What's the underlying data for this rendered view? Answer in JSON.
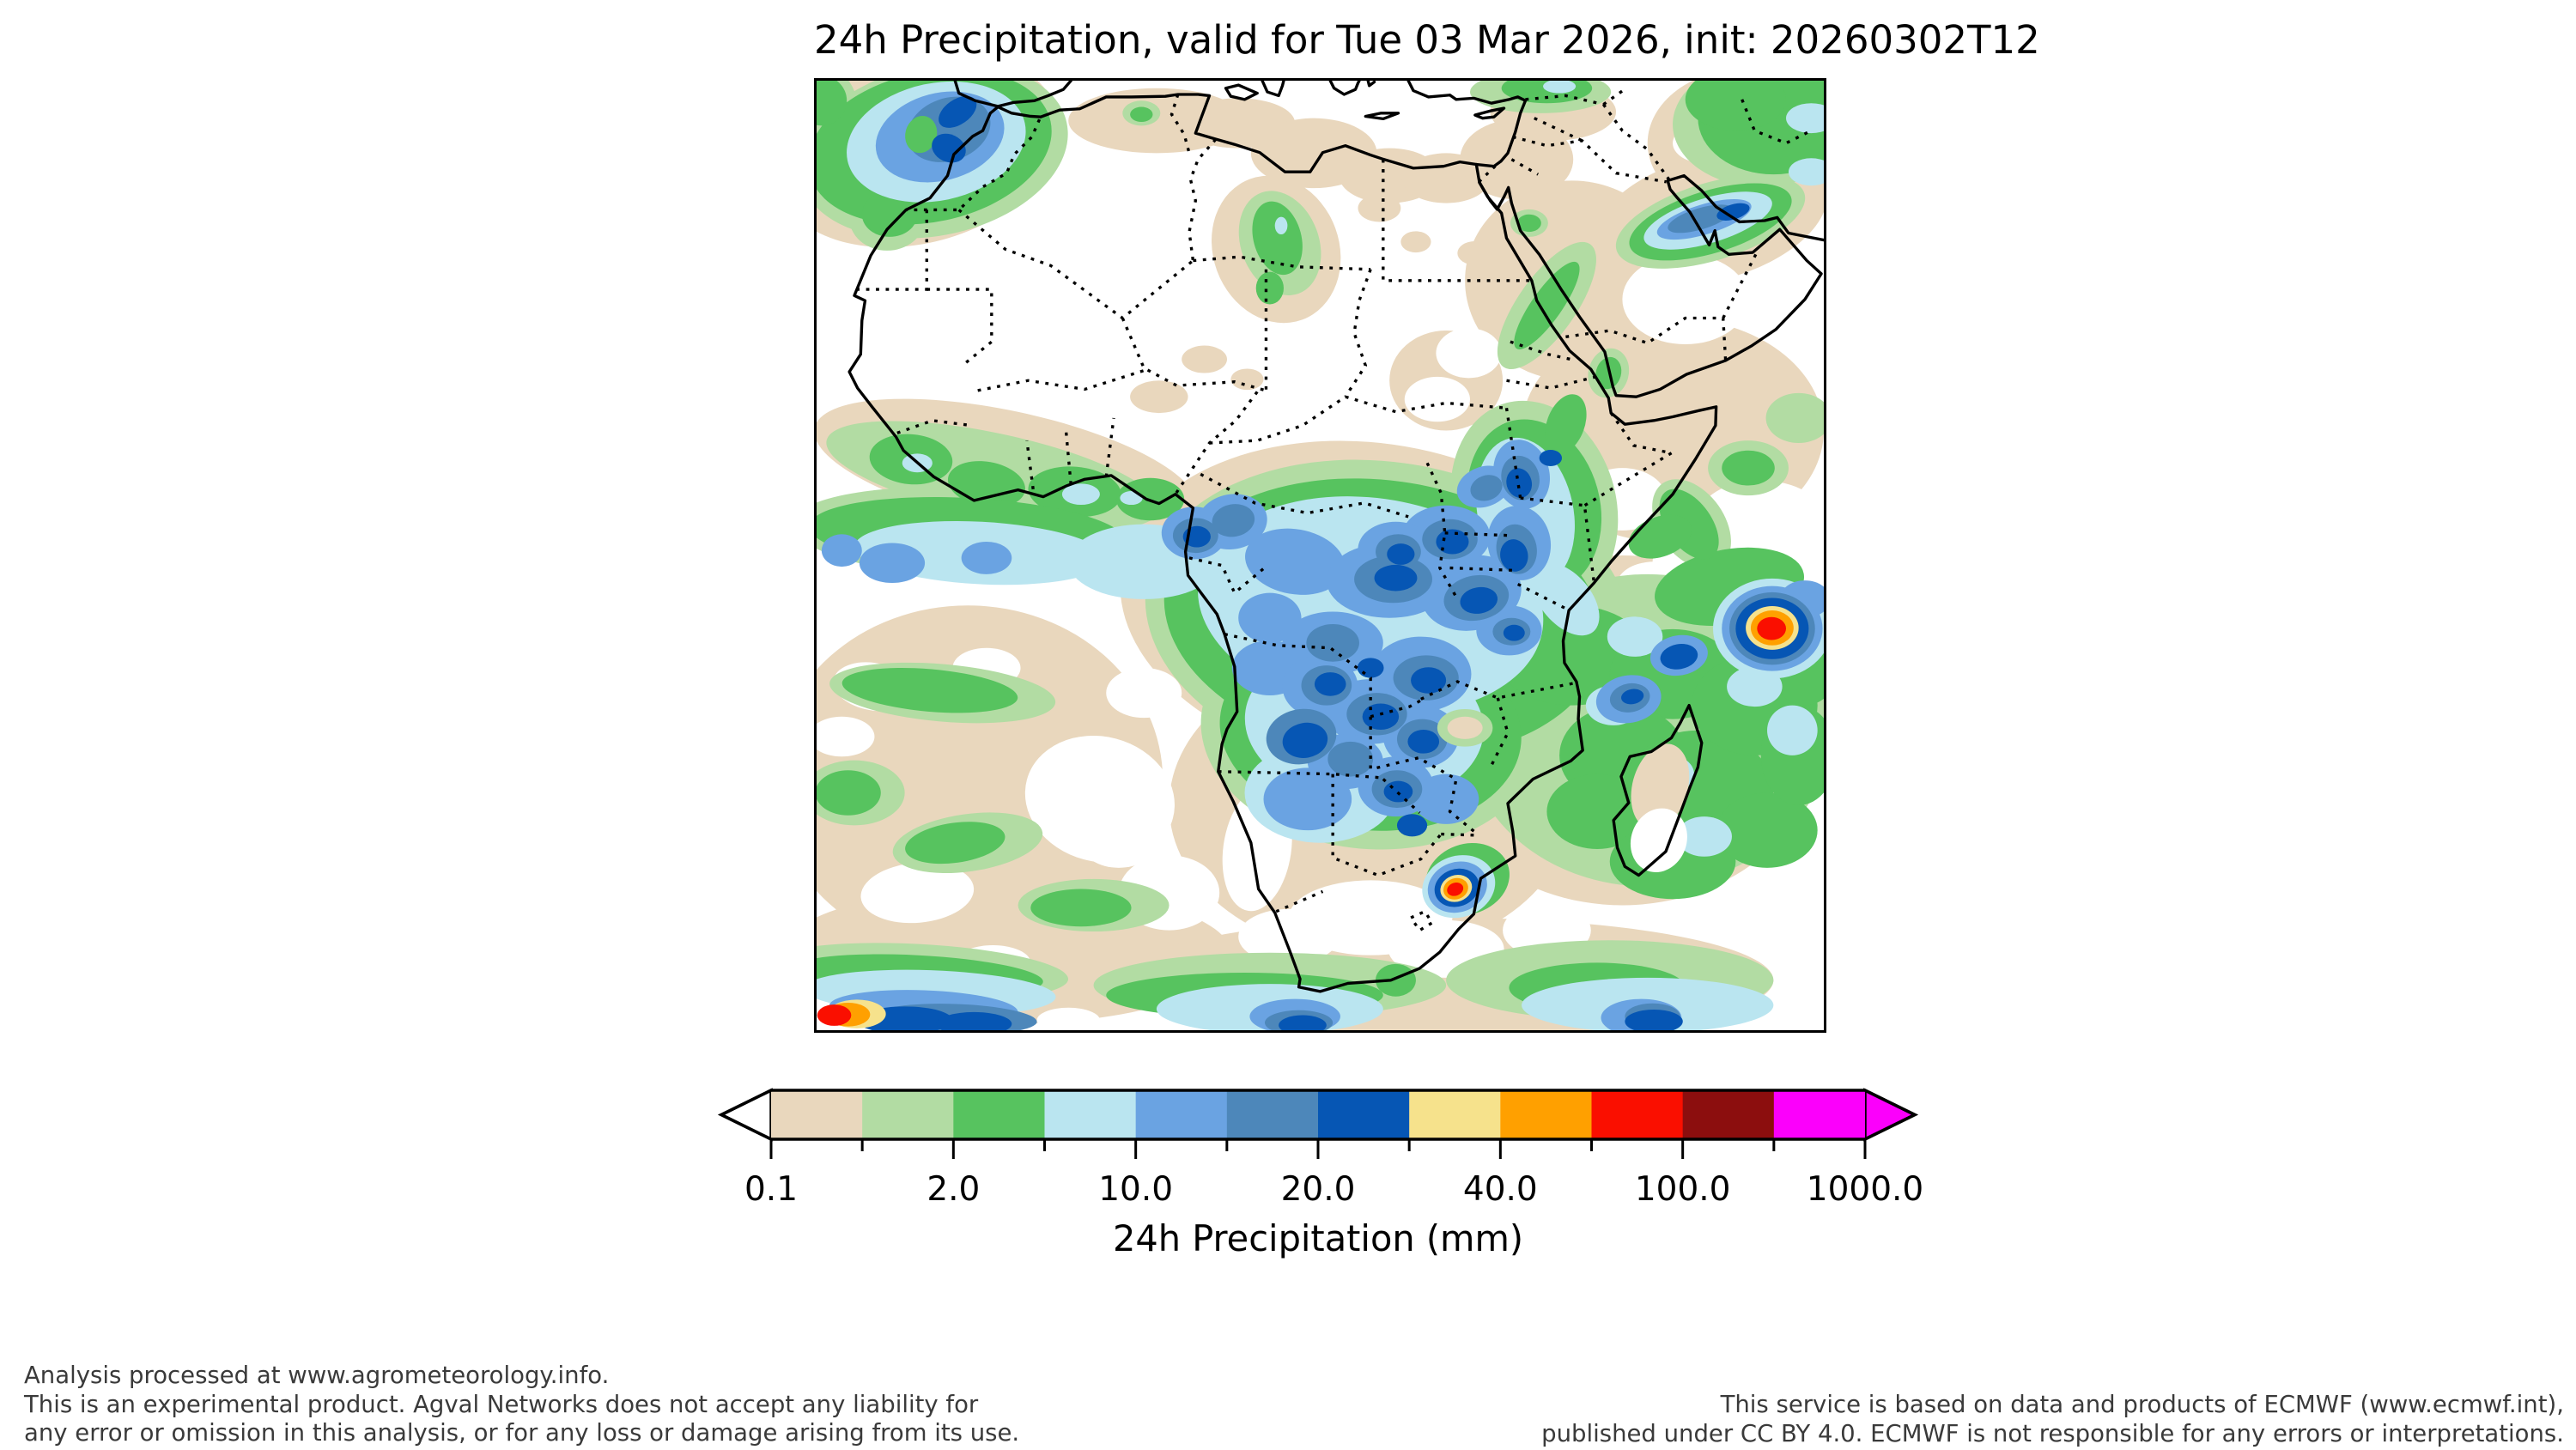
{
  "title": "24h Precipitation, valid for Tue 03 Mar 2026, init: 20260302T12",
  "colorbar": {
    "axis_label": "24h Precipitation (mm)",
    "tick_labels": [
      "0.1",
      "2.0",
      "10.0",
      "20.0",
      "40.0",
      "100.0",
      "1000.0"
    ],
    "segment_colors": [
      "#e9d7bd",
      "#b2dca3",
      "#57c35f",
      "#bae5f0",
      "#6aa3e2",
      "#4d87ba",
      "#0656b4",
      "#f6e28c",
      "#ffa000",
      "#fa0f00",
      "#8c0e0e",
      "#fb00fb"
    ],
    "under_arrow_color": "#ffffff",
    "over_arrow_color": "#fb00fb"
  },
  "footer_left": [
    "Analysis processed at www.agrometeorology.info.",
    "This is an experimental product. Agval Networks does not accept any liability for",
    "any error or omission in this analysis, or for any loss or damage arising from its use."
  ],
  "footer_right": [
    "This service is based on data and products of ECMWF (www.ecmwf.int),",
    "published under CC BY 4.0. ECMWF is not responsible for any errors or interpretations."
  ],
  "text_color": "#000000",
  "footer_text_color": "#3a3a3a"
}
